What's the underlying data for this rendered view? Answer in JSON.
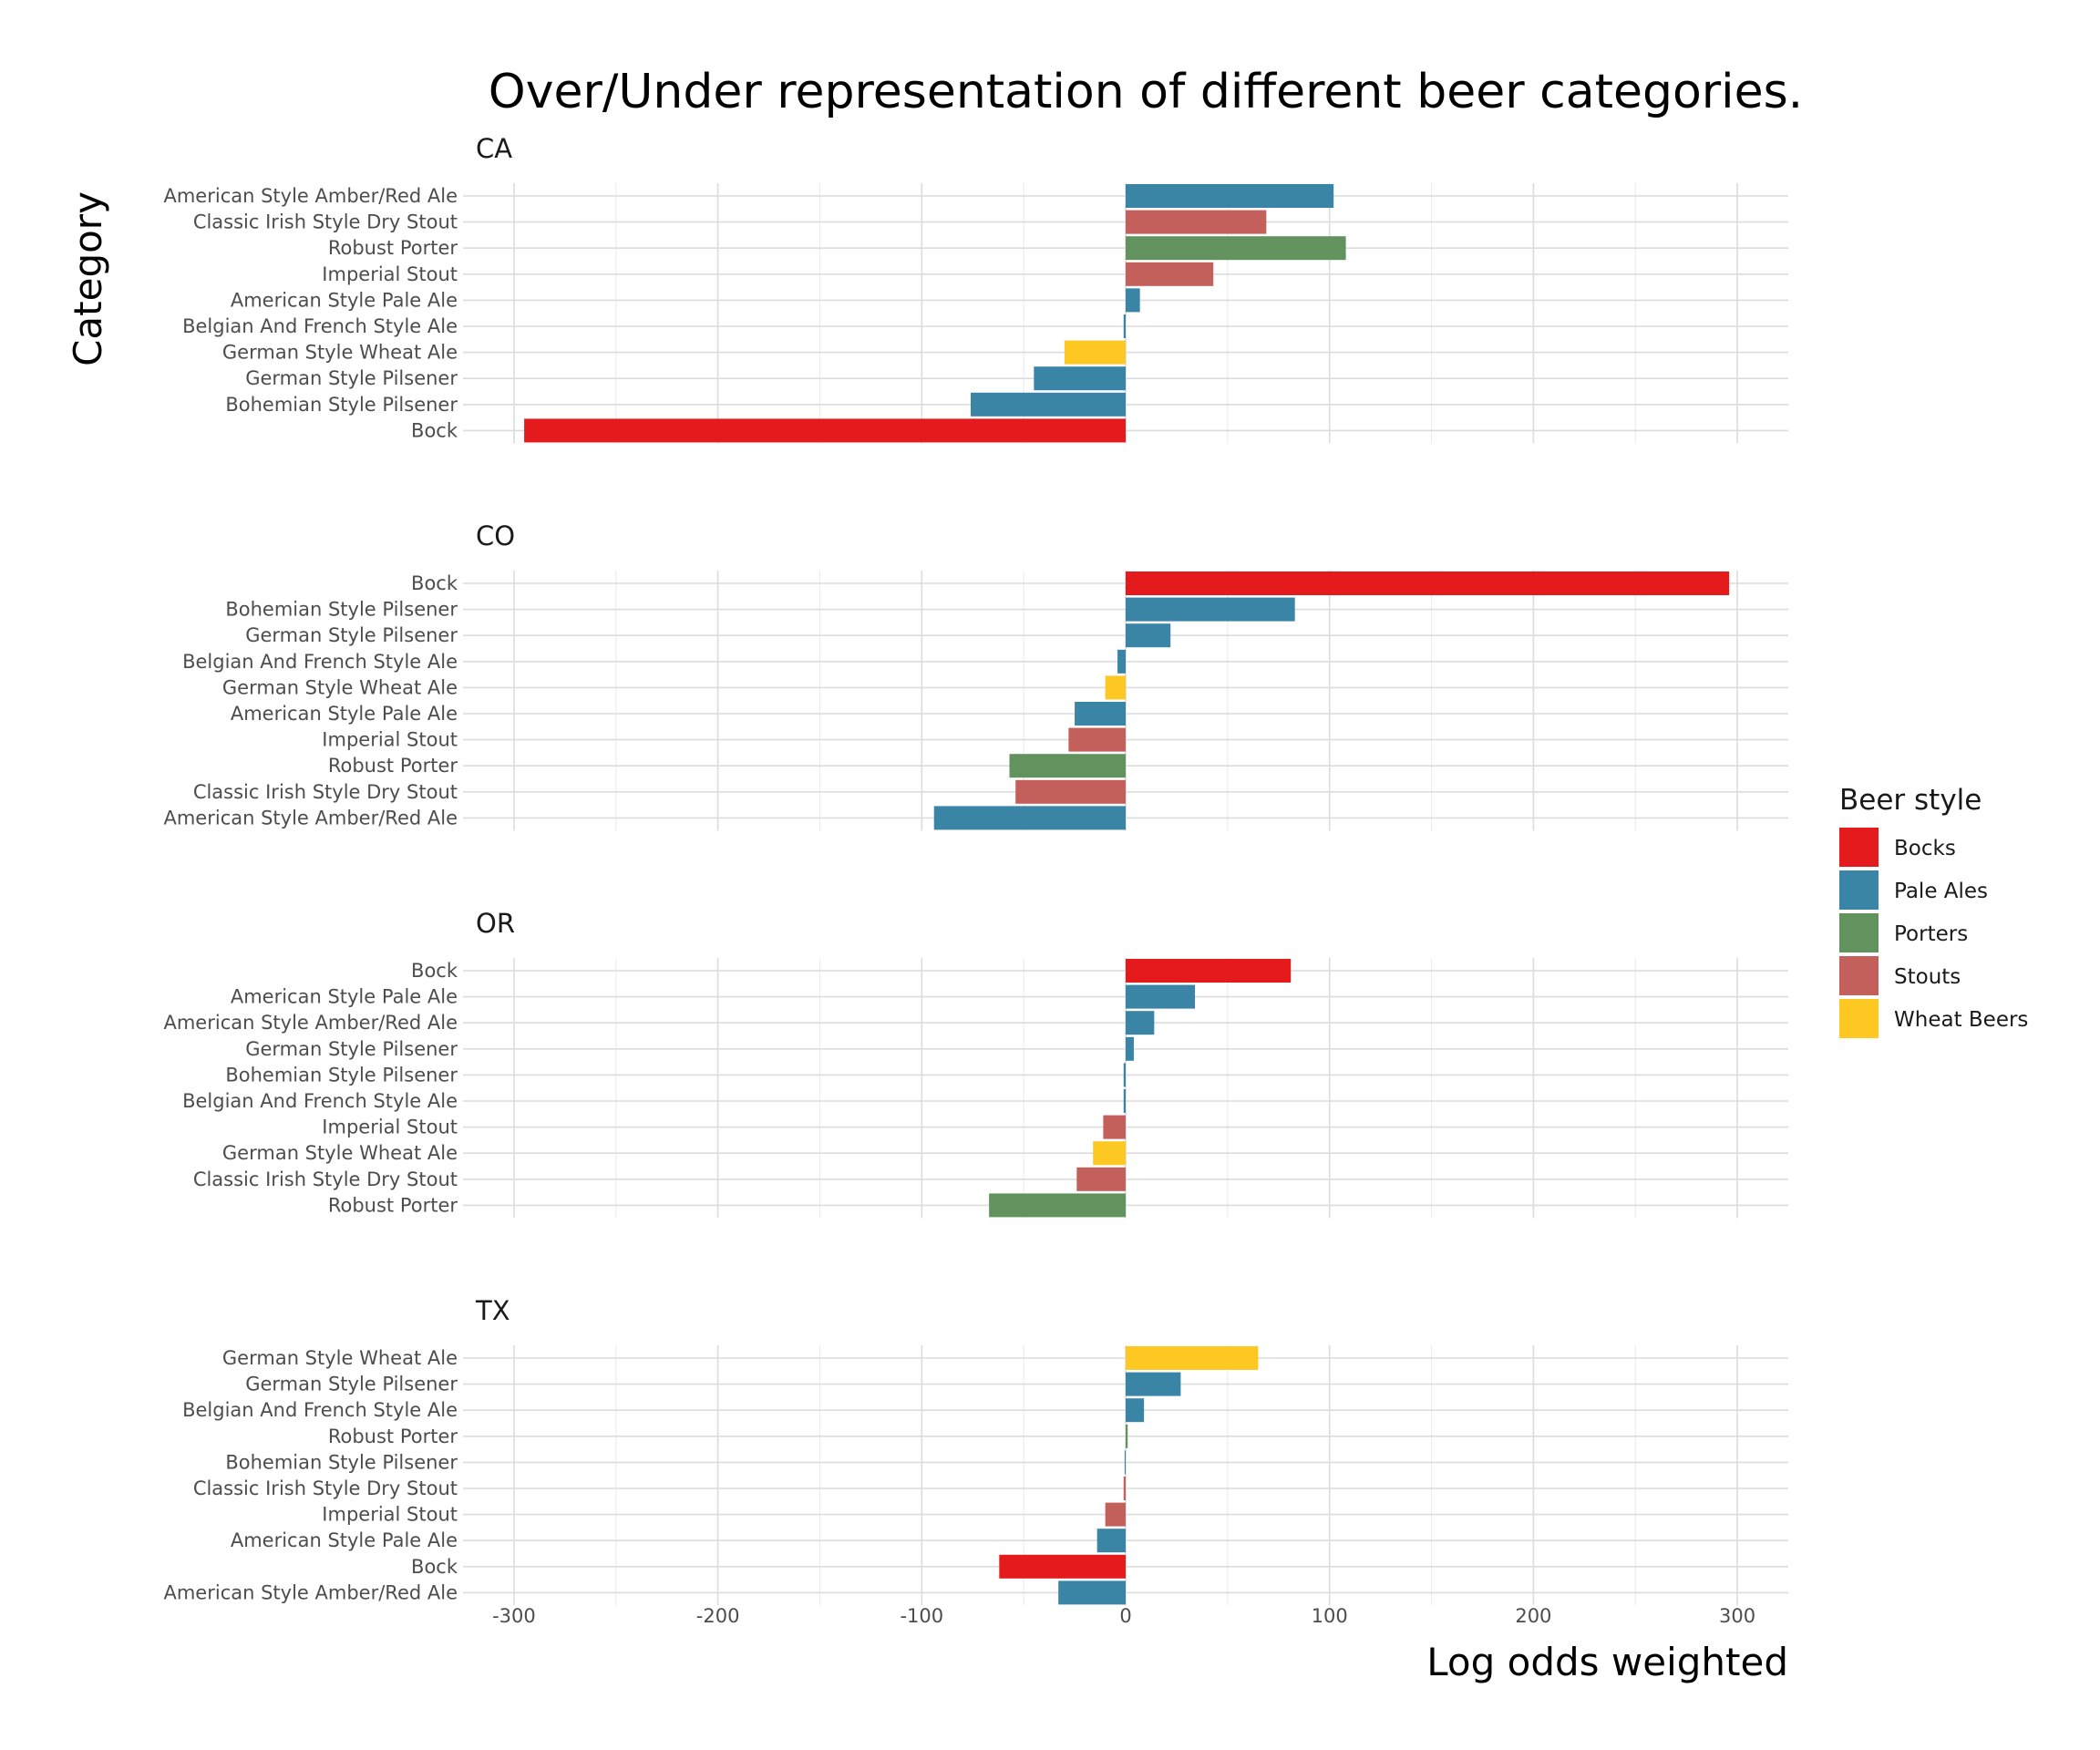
{
  "chart_data": {
    "type": "bar",
    "orientation": "horizontal",
    "title": "Over/Under representation of different beer categories.",
    "xlabel": "Log odds weighted",
    "ylabel": "Category",
    "xlim": [
      -325,
      325
    ],
    "x_ticks": [
      -300,
      -200,
      -100,
      0,
      100,
      200,
      300
    ],
    "x_tick_labels": [
      "-300",
      "-200",
      "-100",
      "0",
      "100",
      "200",
      "300"
    ],
    "grid": true,
    "legend": {
      "title": "Beer style",
      "position": "right",
      "entries": [
        {
          "name": "Bocks",
          "color": "#e41a1c"
        },
        {
          "name": "Pale Ales",
          "color": "#3a84a6"
        },
        {
          "name": "Porters",
          "color": "#62935e"
        },
        {
          "name": "Stouts",
          "color": "#c4605b"
        },
        {
          "name": "Wheat Beers",
          "color": "#fcc821"
        }
      ]
    },
    "panels": [
      {
        "label": "CA",
        "bars": [
          {
            "category": "American Style Amber/Red Ale",
            "style": "Pale Ales",
            "value": 102
          },
          {
            "category": "Classic Irish Style Dry Stout",
            "style": "Stouts",
            "value": 69
          },
          {
            "category": "Robust Porter",
            "style": "Porters",
            "value": 108
          },
          {
            "category": "Imperial Stout",
            "style": "Stouts",
            "value": 43
          },
          {
            "category": "American Style Pale Ale",
            "style": "Pale Ales",
            "value": 7
          },
          {
            "category": "Belgian  And French Style Ale",
            "style": "Pale Ales",
            "value": -1
          },
          {
            "category": "German Style Wheat Ale",
            "style": "Wheat Beers",
            "value": -30
          },
          {
            "category": "German Style Pilsener",
            "style": "Pale Ales",
            "value": -45
          },
          {
            "category": "Bohemian Style Pilsener",
            "style": "Pale Ales",
            "value": -76
          },
          {
            "category": "Bock",
            "style": "Bocks",
            "value": -295
          }
        ]
      },
      {
        "label": "CO",
        "bars": [
          {
            "category": "Bock",
            "style": "Bocks",
            "value": 296
          },
          {
            "category": "Bohemian Style Pilsener",
            "style": "Pale Ales",
            "value": 83
          },
          {
            "category": "German Style Pilsener",
            "style": "Pale Ales",
            "value": 22
          },
          {
            "category": "Belgian  And French Style Ale",
            "style": "Pale Ales",
            "value": -4
          },
          {
            "category": "German Style Wheat Ale",
            "style": "Wheat Beers",
            "value": -10
          },
          {
            "category": "American Style Pale Ale",
            "style": "Pale Ales",
            "value": -25
          },
          {
            "category": "Imperial Stout",
            "style": "Stouts",
            "value": -28
          },
          {
            "category": "Robust Porter",
            "style": "Porters",
            "value": -57
          },
          {
            "category": "Classic Irish Style Dry Stout",
            "style": "Stouts",
            "value": -54
          },
          {
            "category": "American Style Amber/Red Ale",
            "style": "Pale Ales",
            "value": -94
          }
        ]
      },
      {
        "label": "OR",
        "bars": [
          {
            "category": "Bock",
            "style": "Bocks",
            "value": 81
          },
          {
            "category": "American Style Pale Ale",
            "style": "Pale Ales",
            "value": 34
          },
          {
            "category": "American Style Amber/Red Ale",
            "style": "Pale Ales",
            "value": 14
          },
          {
            "category": "German Style Pilsener",
            "style": "Pale Ales",
            "value": 4
          },
          {
            "category": "Bohemian Style Pilsener",
            "style": "Pale Ales",
            "value": -1
          },
          {
            "category": "Belgian  And French Style Ale",
            "style": "Pale Ales",
            "value": -1
          },
          {
            "category": "Imperial Stout",
            "style": "Stouts",
            "value": -11
          },
          {
            "category": "German Style Wheat Ale",
            "style": "Wheat Beers",
            "value": -16
          },
          {
            "category": "Classic Irish Style Dry Stout",
            "style": "Stouts",
            "value": -24
          },
          {
            "category": "Robust Porter",
            "style": "Porters",
            "value": -67
          }
        ]
      },
      {
        "label": "TX",
        "bars": [
          {
            "category": "German Style Wheat Ale",
            "style": "Wheat Beers",
            "value": 65
          },
          {
            "category": "German Style Pilsener",
            "style": "Pale Ales",
            "value": 27
          },
          {
            "category": "Belgian  And French Style Ale",
            "style": "Pale Ales",
            "value": 9
          },
          {
            "category": "Robust Porter",
            "style": "Porters",
            "value": 1
          },
          {
            "category": "Bohemian Style Pilsener",
            "style": "Pale Ales",
            "value": -0.5
          },
          {
            "category": "Classic Irish Style Dry Stout",
            "style": "Stouts",
            "value": -1
          },
          {
            "category": "Imperial Stout",
            "style": "Stouts",
            "value": -10
          },
          {
            "category": "American Style Pale Ale",
            "style": "Pale Ales",
            "value": -14
          },
          {
            "category": "Bock",
            "style": "Bocks",
            "value": -62
          },
          {
            "category": "American Style Amber/Red Ale",
            "style": "Pale Ales",
            "value": -33
          }
        ]
      }
    ]
  }
}
